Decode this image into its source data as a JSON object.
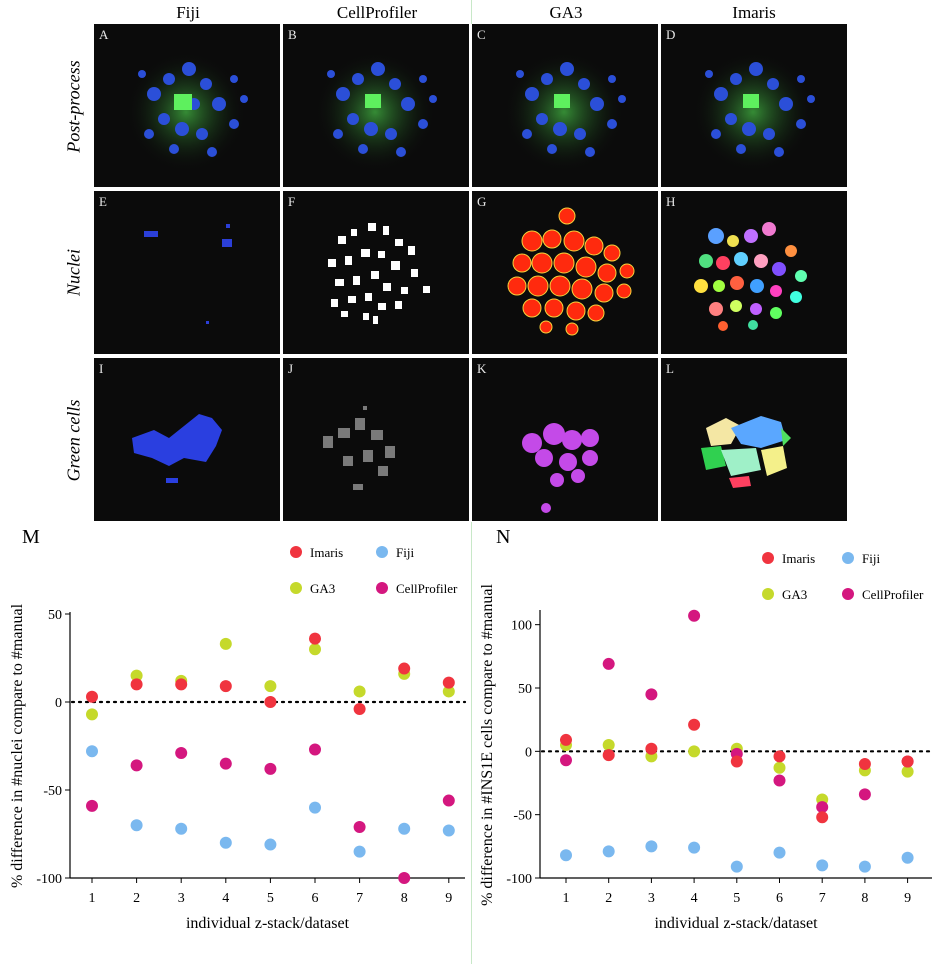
{
  "columns": [
    "Fiji",
    "CellProfiler",
    "GA3",
    "Imaris"
  ],
  "rows": [
    "Post-process",
    "Nuclei",
    "Green cells"
  ],
  "tile_letters": [
    "A",
    "B",
    "C",
    "D",
    "E",
    "F",
    "G",
    "H",
    "I",
    "J",
    "K",
    "L"
  ],
  "chart_data": [
    {
      "panel": "M",
      "type": "scatter",
      "xlabel": "individual z-stack/dataset",
      "ylabel": "% difference in #nuclei compare to #manual",
      "x": [
        1,
        2,
        3,
        4,
        5,
        6,
        7,
        8,
        9
      ],
      "ylim": [
        -100,
        50
      ],
      "yticks": [
        50,
        0,
        -50,
        -100
      ],
      "reference_line": 0,
      "legend": [
        {
          "name": "Imaris",
          "color": "#f0343f"
        },
        {
          "name": "Fiji",
          "color": "#7ab8ef"
        },
        {
          "name": "GA3",
          "color": "#c5d92b"
        },
        {
          "name": "CellProfiler",
          "color": "#d4177f"
        }
      ],
      "series": [
        {
          "name": "GA3",
          "color": "#c5d92b",
          "values": [
            -7,
            15,
            12,
            33,
            9,
            30,
            6,
            16,
            6
          ]
        },
        {
          "name": "Imaris",
          "color": "#f0343f",
          "values": [
            3,
            10,
            10,
            9,
            0,
            36,
            -4,
            19,
            11
          ]
        },
        {
          "name": "Fiji",
          "color": "#7ab8ef",
          "values": [
            -28,
            -70,
            -72,
            -80,
            -81,
            -60,
            -85,
            -72,
            -73
          ]
        },
        {
          "name": "CellProfiler",
          "color": "#d4177f",
          "values": [
            -59,
            -36,
            -29,
            -35,
            -38,
            -27,
            -71,
            -100,
            -56
          ]
        }
      ]
    },
    {
      "panel": "N",
      "type": "scatter",
      "xlabel": "individual z-stack/dataset",
      "ylabel": "% difference in #INS1E cells compare to #manual",
      "x": [
        1,
        2,
        3,
        4,
        5,
        6,
        7,
        8,
        9
      ],
      "ylim": [
        -100,
        110
      ],
      "yticks": [
        100,
        50,
        0,
        -50,
        -100
      ],
      "reference_line": 0,
      "legend": [
        {
          "name": "Imaris",
          "color": "#f0343f"
        },
        {
          "name": "Fiji",
          "color": "#7ab8ef"
        },
        {
          "name": "GA3",
          "color": "#c5d92b"
        },
        {
          "name": "CellProfiler",
          "color": "#d4177f"
        }
      ],
      "series": [
        {
          "name": "GA3",
          "color": "#c5d92b",
          "values": [
            5,
            5,
            -4,
            0,
            2,
            -13,
            -38,
            -15,
            -16
          ]
        },
        {
          "name": "CellProfiler",
          "color": "#d4177f",
          "values": [
            -7,
            69,
            45,
            107,
            -2,
            -23,
            -44,
            -34,
            -8
          ]
        },
        {
          "name": "Imaris",
          "color": "#f0343f",
          "values": [
            9,
            -3,
            2,
            21,
            -8,
            -4,
            -52,
            -10,
            -8
          ]
        },
        {
          "name": "Fiji",
          "color": "#7ab8ef",
          "values": [
            -82,
            -79,
            -75,
            -76,
            -91,
            -80,
            -90,
            -91,
            -84
          ]
        }
      ]
    }
  ]
}
